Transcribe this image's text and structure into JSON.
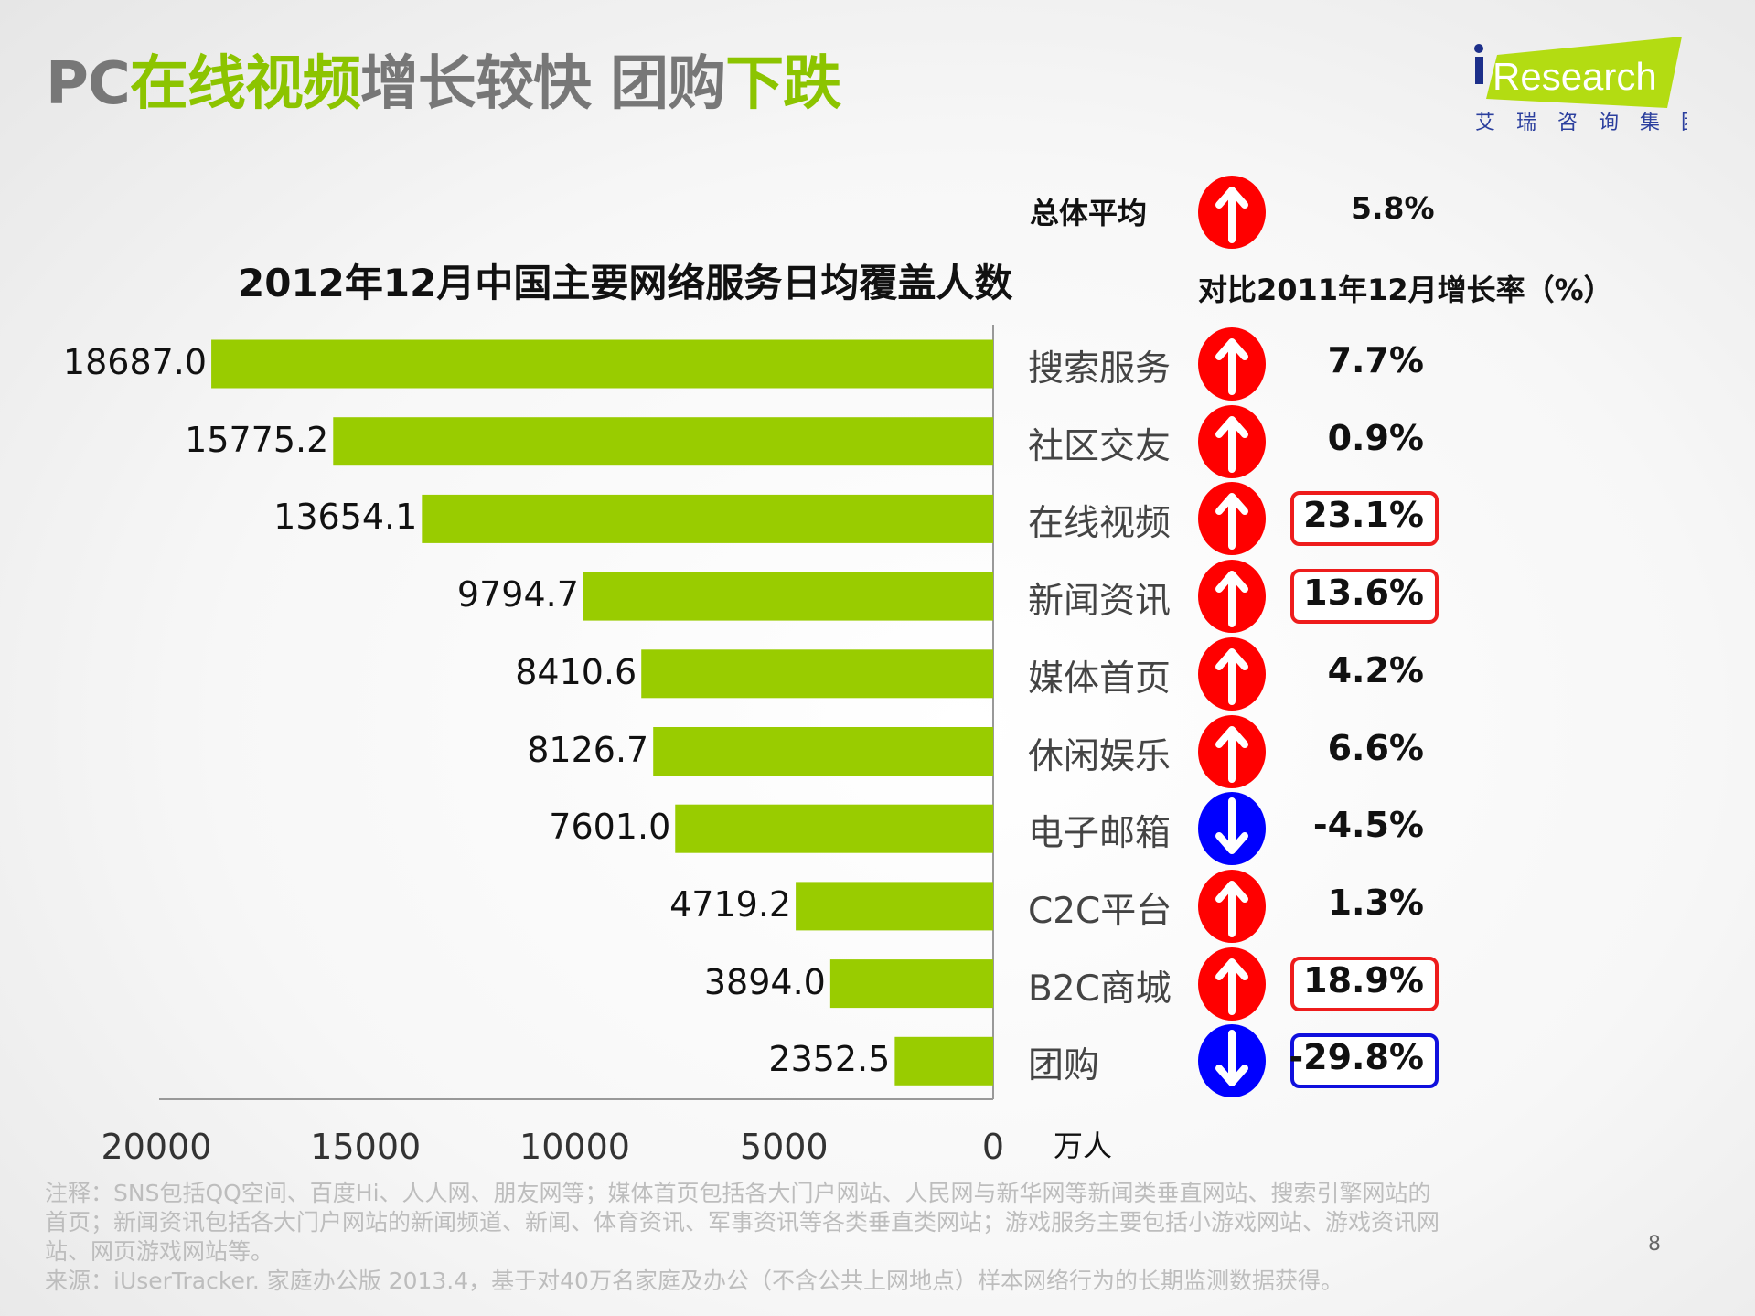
{
  "title": {
    "parts": [
      {
        "text": "PC",
        "green": false
      },
      {
        "text": "在线视频",
        "green": true
      },
      {
        "text": "增长较快 团购",
        "green": false
      },
      {
        "text": "下跌",
        "green": true
      }
    ]
  },
  "logo": {
    "text": "iResearch",
    "sub": "艾 瑞 咨 询 集 团"
  },
  "colors": {
    "bar": "#99cc00",
    "up": "#ff0000",
    "down": "#0000ff",
    "box_up": "#ee1c1c",
    "box_down": "#1010dd"
  },
  "overall": {
    "label": "总体平均",
    "direction": "up",
    "value": "5.8%"
  },
  "growth_header": "对比2011年12月增长率（%）",
  "chart_data": {
    "type": "bar",
    "orientation": "horizontal-reversed",
    "title": "2012年12月中国主要网络服务日均覆盖人数",
    "unit": "万人",
    "xlim": [
      0,
      20000
    ],
    "ticks": [
      "20000",
      "15000",
      "10000",
      "5000",
      "0"
    ],
    "categories": [
      "搜索服务",
      "社区交友",
      "在线视频",
      "新闻资讯",
      "媒体首页",
      "休闲娱乐",
      "电子邮箱",
      "C2C平台",
      "B2C商城",
      "团购"
    ],
    "values": [
      18687.0,
      15775.2,
      13654.1,
      9794.7,
      8410.6,
      8126.7,
      7601.0,
      4719.2,
      3894.0,
      2352.5
    ],
    "labels": [
      "18687.0",
      "15775.2",
      "13654.1",
      "9794.7",
      "8410.6",
      "8126.7",
      "7601.0",
      "4719.2",
      "3894.0",
      "2352.5"
    ],
    "growth": [
      "7.7%",
      "0.9%",
      "23.1%",
      "13.6%",
      "4.2%",
      "6.6%",
      "-4.5%",
      "1.3%",
      "18.9%",
      "-29.8%"
    ],
    "direction": [
      "up",
      "up",
      "up",
      "up",
      "up",
      "up",
      "down",
      "up",
      "up",
      "down"
    ],
    "highlighted": [
      false,
      false,
      true,
      true,
      false,
      false,
      false,
      false,
      true,
      true
    ]
  },
  "notes": [
    "注释：SNS包括QQ空间、百度Hi、人人网、朋友网等；媒体首页包括各大门户网站、人民网与新华网等新闻类垂直网站、搜索引擎网站的",
    "首页；新闻资讯包括各大门户网站的新闻频道、新闻、体育资讯、军事资讯等各类垂直类网站；游戏服务主要包括小游戏网站、游戏资讯网",
    "站、网页游戏网站等。",
    "来源：iUserTracker. 家庭办公版 2013.4，基于对40万名家庭及办公（不含公共上网地点）样本网络行为的长期监测数据获得。"
  ],
  "page_number": "8"
}
